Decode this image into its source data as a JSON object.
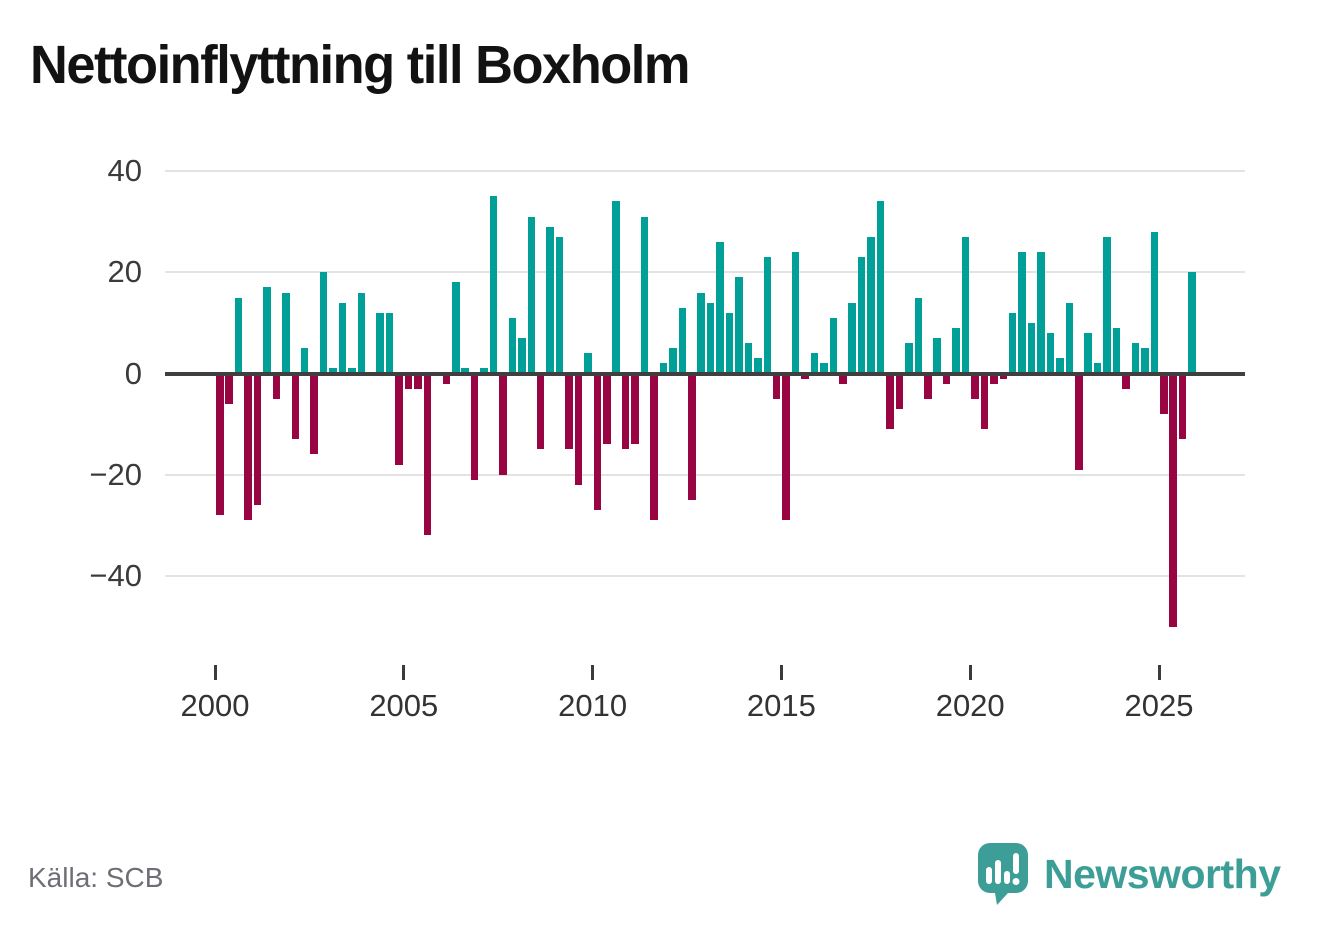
{
  "title": "Nettoinflyttning till Boxholm",
  "source": "Källa: SCB",
  "branding": {
    "logo_text": "Newsworthy",
    "logo_icon": "speech-bubble-bar-chart-icon",
    "logo_color": "#3d9e98"
  },
  "chart_data": {
    "type": "bar",
    "title": "Nettoinflyttning till Boxholm",
    "xlabel": "",
    "ylabel": "",
    "x_tick_years": [
      2000,
      2005,
      2010,
      2015,
      2020,
      2025
    ],
    "x_tick_labels": [
      "2000",
      "2005",
      "2010",
      "2015",
      "2020",
      "2025"
    ],
    "y_ticks": [
      40,
      20,
      0,
      -20,
      -40
    ],
    "y_tick_labels": [
      "40",
      "20",
      "0",
      "−20",
      "−40"
    ],
    "ylim": [
      -52,
      42
    ],
    "grid": "horizontal",
    "legend": "none",
    "frequency": "quarterly",
    "start": "2000-Q1",
    "end": "2025-Q4",
    "colors": {
      "positive": "#00a099",
      "negative": "#990442"
    },
    "years": [
      {
        "year": 2000,
        "q": [
          -28,
          -6,
          15,
          -29
        ]
      },
      {
        "year": 2001,
        "q": [
          -26,
          17,
          -5,
          16
        ]
      },
      {
        "year": 2002,
        "q": [
          -13,
          5,
          -16,
          20
        ]
      },
      {
        "year": 2003,
        "q": [
          1,
          14,
          1,
          16
        ]
      },
      {
        "year": 2004,
        "q": [
          0,
          12,
          12,
          -18
        ]
      },
      {
        "year": 2005,
        "q": [
          -3,
          -3,
          -32,
          0
        ]
      },
      {
        "year": 2006,
        "q": [
          -2,
          18,
          1,
          -21
        ]
      },
      {
        "year": 2007,
        "q": [
          1,
          35,
          -20,
          11
        ]
      },
      {
        "year": 2008,
        "q": [
          7,
          31,
          -15,
          29
        ]
      },
      {
        "year": 2009,
        "q": [
          27,
          -15,
          -22,
          4
        ]
      },
      {
        "year": 2010,
        "q": [
          -27,
          -14,
          34,
          -15
        ]
      },
      {
        "year": 2011,
        "q": [
          -14,
          31,
          -29,
          2
        ]
      },
      {
        "year": 2012,
        "q": [
          5,
          13,
          -25,
          16
        ]
      },
      {
        "year": 2013,
        "q": [
          14,
          26,
          12,
          19
        ]
      },
      {
        "year": 2014,
        "q": [
          6,
          3,
          23,
          -5
        ]
      },
      {
        "year": 2015,
        "q": [
          -29,
          24,
          -1,
          4
        ]
      },
      {
        "year": 2016,
        "q": [
          2,
          11,
          -2,
          14
        ]
      },
      {
        "year": 2017,
        "q": [
          23,
          27,
          34,
          -11
        ]
      },
      {
        "year": 2018,
        "q": [
          -7,
          6,
          15,
          -5
        ]
      },
      {
        "year": 2019,
        "q": [
          7,
          -2,
          9,
          27
        ]
      },
      {
        "year": 2020,
        "q": [
          -5,
          -11,
          -2,
          -1
        ]
      },
      {
        "year": 2021,
        "q": [
          12,
          24,
          10,
          24
        ]
      },
      {
        "year": 2022,
        "q": [
          8,
          3,
          14,
          -19
        ]
      },
      {
        "year": 2023,
        "q": [
          8,
          2,
          27,
          9
        ]
      },
      {
        "year": 2024,
        "q": [
          -3,
          6,
          5,
          28
        ]
      },
      {
        "year": 2025,
        "q": [
          -8,
          -50,
          -13,
          20
        ]
      }
    ]
  }
}
